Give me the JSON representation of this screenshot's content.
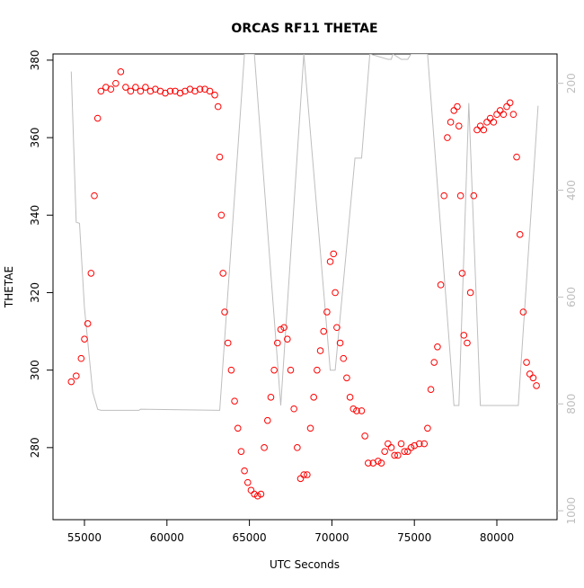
{
  "chart_data": {
    "type": "scatter",
    "title": "ORCAS RF11 THETAE",
    "x_label": "UTC Seconds",
    "y_label": "THETAE",
    "xlim": [
      53094,
      83649
    ],
    "ylim": [
      261.4,
      381.6
    ],
    "y2lim": [
      1016.7,
      145
    ],
    "xticks": [
      55000,
      60000,
      65000,
      70000,
      75000,
      80000
    ],
    "yticks": [
      280,
      300,
      320,
      340,
      360,
      380
    ],
    "y2ticks": [
      200,
      400,
      600,
      800,
      1000
    ],
    "series": [
      {
        "style": "line",
        "axis": "y2",
        "color": "#bebebe",
        "x": [
          54200,
          54500,
          54700,
          55000,
          55500,
          55800,
          56000,
          58300,
          58400,
          63200,
          64700,
          65300,
          66900,
          68300,
          69900,
          70200,
          71400,
          71800,
          72300,
          73400,
          73600,
          73700,
          74200,
          74600,
          74800,
          75800,
          77400,
          77700,
          78300,
          79000,
          81300,
          82500
        ],
        "values": [
          178,
          460,
          462,
          620,
          778,
          810,
          812,
          812,
          810,
          812,
          145,
          145,
          803,
          145,
          737,
          737,
          340,
          340,
          145,
          155,
          155,
          145,
          155,
          155,
          145,
          145,
          803,
          803,
          237,
          803,
          803,
          242
        ]
      },
      {
        "style": "points",
        "color": "#ff0000",
        "x": [
          54200,
          54500,
          54800,
          55000,
          55200,
          55400,
          55600,
          55800,
          56000,
          56300,
          56600,
          56900,
          57200,
          57500,
          57800,
          58100,
          58400,
          58700,
          59000,
          59300,
          59600,
          59900,
          60200,
          60500,
          60800,
          61100,
          61400,
          61700,
          62000,
          62300,
          62600,
          62900,
          63100,
          63200,
          63300,
          63400,
          63500,
          63700,
          63900,
          64100,
          64300,
          64500,
          64700,
          64900,
          65100,
          65300,
          65500,
          65700,
          65900,
          66100,
          66300,
          66500,
          66700,
          66900,
          67100,
          67300,
          67500,
          67700,
          67900,
          68100,
          68300,
          68500,
          68700,
          68900,
          69100,
          69300,
          69500,
          69700,
          69900,
          70100,
          70200,
          70300,
          70500,
          70700,
          70900,
          71100,
          71300,
          71500,
          71800,
          72000,
          72200,
          72500,
          72800,
          73000,
          73200,
          73400,
          73600,
          73800,
          74000,
          74200,
          74400,
          74600,
          74800,
          75000,
          75300,
          75600,
          75800,
          76000,
          76200,
          76400,
          76600,
          76800,
          77000,
          77200,
          77400,
          77600,
          77700,
          77800,
          77900,
          78000,
          78200,
          78400,
          78600,
          78800,
          79000,
          79200,
          79400,
          79600,
          79800,
          80000,
          80200,
          80400,
          80600,
          80800,
          81000,
          81200,
          81400,
          81600,
          81800,
          82000,
          82200,
          82400
        ],
        "values": [
          297,
          298.5,
          303,
          308,
          312,
          325,
          345,
          365,
          372,
          373,
          372.5,
          374,
          377,
          373,
          372,
          373,
          372,
          373,
          372,
          372.5,
          372,
          371.5,
          372,
          372,
          371.5,
          372,
          372.5,
          372,
          372.5,
          372.5,
          372,
          371,
          368,
          355,
          340,
          325,
          315,
          307,
          300,
          292,
          285,
          279,
          274,
          271,
          269,
          268,
          267.5,
          268,
          280,
          287,
          293,
          300,
          307,
          310.5,
          311,
          308,
          300,
          290,
          280,
          272,
          273,
          273,
          285,
          293,
          300,
          305,
          310,
          315,
          328,
          330,
          320,
          311,
          307,
          303,
          298,
          293,
          290,
          289.5,
          289.5,
          283,
          276,
          276,
          276.5,
          276,
          279,
          281,
          280,
          278,
          278,
          281,
          279,
          279,
          280,
          280.5,
          281,
          281,
          285,
          295,
          302,
          306,
          322,
          345,
          360,
          364,
          367,
          368,
          363,
          345,
          325,
          309,
          307,
          320,
          345,
          362,
          363,
          362,
          364,
          365,
          364,
          366,
          367,
          366,
          368,
          369,
          366,
          355,
          335,
          315,
          302,
          299,
          298,
          296
        ]
      }
    ]
  }
}
